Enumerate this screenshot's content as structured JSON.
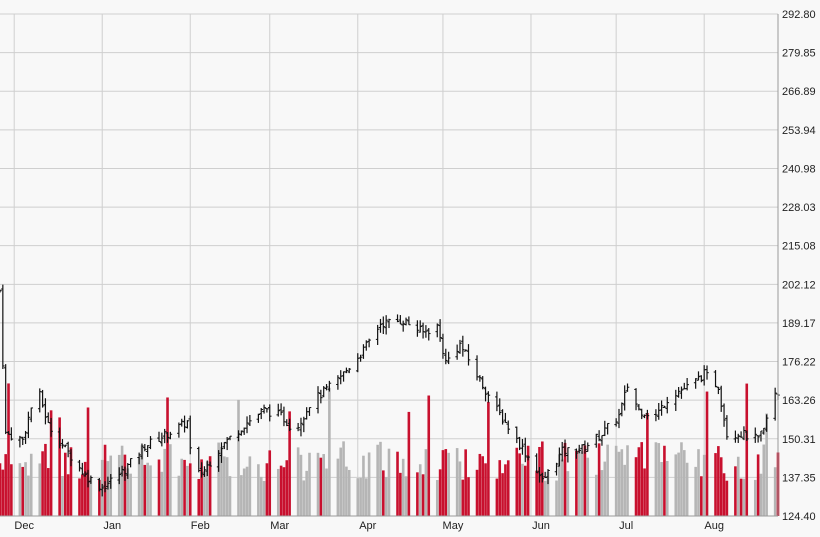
{
  "chart_data": {
    "type": "ohlc",
    "title": "",
    "xlabel": "",
    "ylabel": "",
    "x_ticks": [
      "Dec",
      "Jan",
      "Feb",
      "Mar",
      "Apr",
      "May",
      "Jun",
      "Jul",
      "Aug"
    ],
    "y_ticks": [
      "124.40",
      "137.35",
      "150.31",
      "163.26",
      "176.22",
      "189.17",
      "202.12",
      "215.08",
      "228.03",
      "240.98",
      "253.94",
      "266.89",
      "279.85",
      "292.80"
    ],
    "ylim": [
      124.4,
      292.8
    ],
    "grid": true,
    "y_axis_position": "right",
    "colors": {
      "background": "#f8f8f8",
      "grid": "#cfcfcf",
      "price_bar": "#111111",
      "volume_down": "#c8102e",
      "volume_up": "#b5b5b5"
    },
    "price_waypoints": [
      {
        "date": "Nov 26",
        "close": 200
      },
      {
        "date": "Nov 28",
        "close": 152
      },
      {
        "date": "Dec 4",
        "close": 150
      },
      {
        "date": "Dec 9",
        "close": 168
      },
      {
        "date": "Dec 13",
        "close": 155
      },
      {
        "date": "Dec 19",
        "close": 147
      },
      {
        "date": "Dec 26",
        "close": 138
      },
      {
        "date": "Jan 1",
        "close": 134
      },
      {
        "date": "Jan 9",
        "close": 140
      },
      {
        "date": "Jan 16",
        "close": 148
      },
      {
        "date": "Jan 26",
        "close": 153
      },
      {
        "date": "Jan 31",
        "close": 156
      },
      {
        "date": "Feb 2",
        "close": 137
      },
      {
        "date": "Feb 6",
        "close": 140
      },
      {
        "date": "Feb 12",
        "close": 148
      },
      {
        "date": "Feb 20",
        "close": 155
      },
      {
        "date": "Feb 27",
        "close": 160
      },
      {
        "date": "Mar 5",
        "close": 158
      },
      {
        "date": "Mar 10",
        "close": 153
      },
      {
        "date": "Mar 15",
        "close": 162
      },
      {
        "date": "Mar 25",
        "close": 170
      },
      {
        "date": "Apr 3",
        "close": 180
      },
      {
        "date": "Apr 9",
        "close": 189
      },
      {
        "date": "Apr 17",
        "close": 190
      },
      {
        "date": "Apr 24",
        "close": 186
      },
      {
        "date": "Apr 29",
        "close": 188
      },
      {
        "date": "May 2",
        "close": 176
      },
      {
        "date": "May 7",
        "close": 182
      },
      {
        "date": "May 14",
        "close": 170
      },
      {
        "date": "May 20",
        "close": 160
      },
      {
        "date": "May 27",
        "close": 150
      },
      {
        "date": "Jun 3",
        "close": 140
      },
      {
        "date": "Jun 5",
        "close": 136
      },
      {
        "date": "Jun 12",
        "close": 146
      },
      {
        "date": "Jun 19",
        "close": 147
      },
      {
        "date": "Jun 26",
        "close": 152
      },
      {
        "date": "Jul 2",
        "close": 158
      },
      {
        "date": "Jul 5",
        "close": 168
      },
      {
        "date": "Jul 9",
        "close": 160
      },
      {
        "date": "Jul 15",
        "close": 158
      },
      {
        "date": "Jul 20",
        "close": 165
      },
      {
        "date": "Jul 27",
        "close": 168
      },
      {
        "date": "Aug 1",
        "close": 172
      },
      {
        "date": "Aug 6",
        "close": 168
      },
      {
        "date": "Aug 9",
        "close": 152
      },
      {
        "date": "Aug 14",
        "close": 152
      },
      {
        "date": "Aug 20",
        "close": 150
      },
      {
        "date": "Aug 22",
        "close": 153
      },
      {
        "date": "Aug 25",
        "close": 165
      }
    ]
  }
}
